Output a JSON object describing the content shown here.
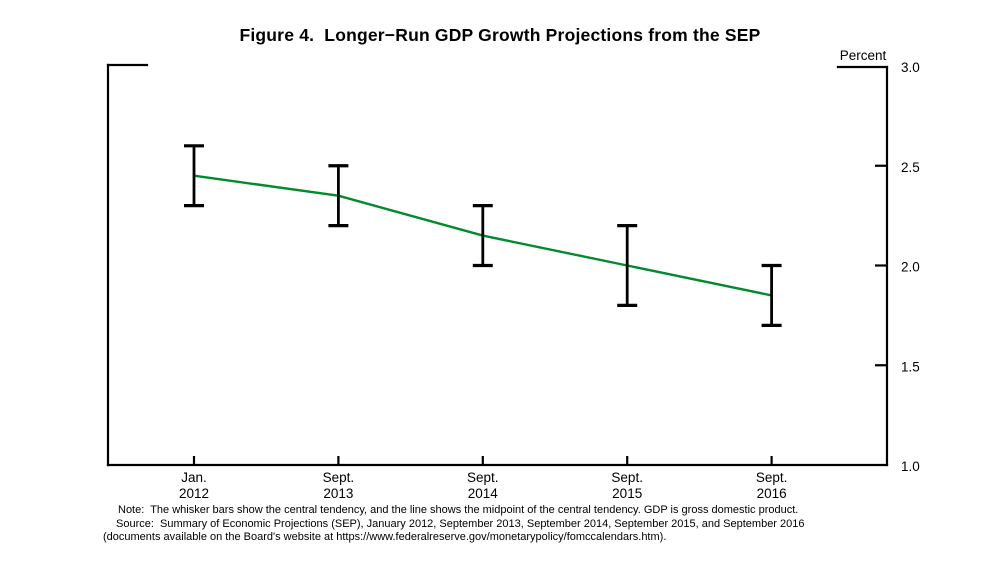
{
  "chart_data": {
    "type": "line",
    "title": "Figure 4.  Longer−Run GDP Growth Projections from the SEP",
    "ylabel": "Percent",
    "ylim": [
      1.0,
      3.0
    ],
    "yticks": [
      3.0,
      2.5,
      2.0,
      1.5,
      1.0
    ],
    "grid": false,
    "legend": "none",
    "categories": [
      {
        "month": "Jan.",
        "year": "2012"
      },
      {
        "month": "Sept.",
        "year": "2013"
      },
      {
        "month": "Sept.",
        "year": "2014"
      },
      {
        "month": "Sept.",
        "year": "2015"
      },
      {
        "month": "Sept.",
        "year": "2016"
      }
    ],
    "series": [
      {
        "name": "central_tendency_low",
        "values": [
          2.3,
          2.2,
          2.0,
          1.8,
          1.7
        ]
      },
      {
        "name": "central_tendency_high",
        "values": [
          2.6,
          2.5,
          2.3,
          2.2,
          2.0
        ]
      },
      {
        "name": "midpoint",
        "values": [
          2.45,
          2.35,
          2.15,
          2.0,
          1.85
        ]
      }
    ],
    "line_color": "#008B2D",
    "whisker_color": "#000000"
  },
  "notes": {
    "line1": "Note:  The whisker bars show the central tendency, and the line shows the midpoint of the central tendency. GDP is gross domestic product.",
    "line2": "Source:  Summary of Economic Projections (SEP), January 2012, September 2013, September 2014, September 2015, and September 2016",
    "line3": "(documents available on the Board's website at https://www.federalreserve.gov/monetarypolicy/fomccalendars.htm)."
  }
}
